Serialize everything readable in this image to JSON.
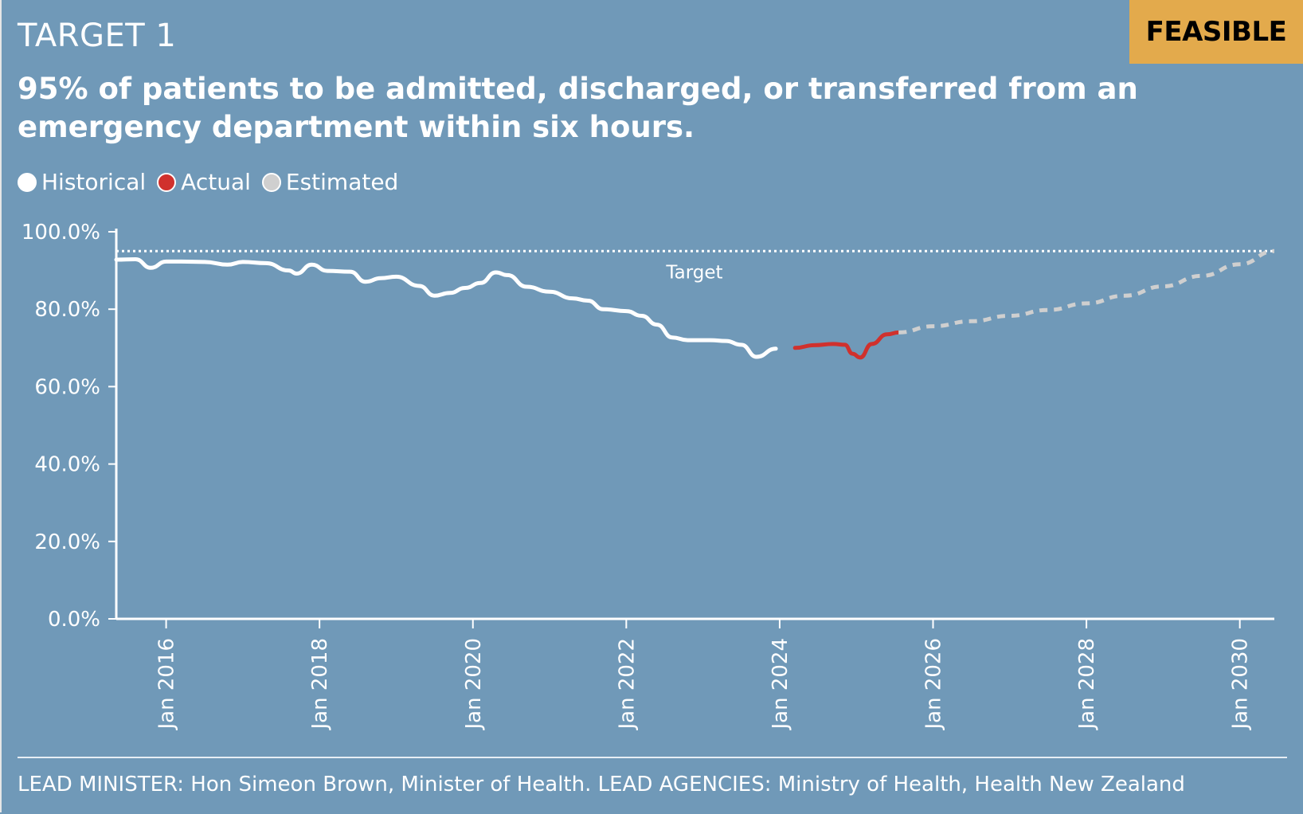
{
  "header": {
    "label": "TARGET 1",
    "badge": "FEASIBLE",
    "title": "95% of patients to be admitted, discharged, or transferred from an emergency department within six hours."
  },
  "legend": [
    {
      "label": "Historical",
      "color": "#ffffff"
    },
    {
      "label": "Actual",
      "color": "#d0312d"
    },
    {
      "label": "Estimated",
      "color": "#cfcfcf"
    }
  ],
  "chart_data": {
    "type": "line",
    "title": "95% of patients to be admitted, discharged, or transferred from an emergency department within six hours.",
    "xlabel": "",
    "ylabel": "",
    "ylim": [
      0,
      100
    ],
    "xlim": [
      2015.35,
      2030.45
    ],
    "y_ticks": [
      {
        "value": 0,
        "label": "0.0%"
      },
      {
        "value": 20,
        "label": "20.0%"
      },
      {
        "value": 40,
        "label": "40.0%"
      },
      {
        "value": 60,
        "label": "60.0%"
      },
      {
        "value": 80,
        "label": "80.0%"
      },
      {
        "value": 100,
        "label": "100.0%"
      }
    ],
    "x_ticks": [
      {
        "value": 2016,
        "label": "Jan 2016"
      },
      {
        "value": 2018,
        "label": "Jan 2018"
      },
      {
        "value": 2020,
        "label": "Jan 2020"
      },
      {
        "value": 2022,
        "label": "Jan 2022"
      },
      {
        "value": 2024,
        "label": "Jan 2024"
      },
      {
        "value": 2026,
        "label": "Jan 2026"
      },
      {
        "value": 2028,
        "label": "Jan 2028"
      },
      {
        "value": 2030,
        "label": "Jan 2030"
      }
    ],
    "target": {
      "value": 95,
      "label": "Target"
    },
    "series": [
      {
        "name": "Historical",
        "color": "#ffffff",
        "style": "solid",
        "x": [
          2015.35,
          2015.6,
          2015.8,
          2016.0,
          2016.2,
          2016.5,
          2016.8,
          2017.0,
          2017.3,
          2017.6,
          2017.7,
          2017.9,
          2018.1,
          2018.4,
          2018.6,
          2018.8,
          2019.0,
          2019.3,
          2019.5,
          2019.7,
          2019.9,
          2020.1,
          2020.3,
          2020.45,
          2020.7,
          2021.0,
          2021.3,
          2021.5,
          2021.7,
          2022.0,
          2022.2,
          2022.4,
          2022.6,
          2022.8,
          2023.1,
          2023.3,
          2023.5,
          2023.7,
          2023.95
        ],
        "y": [
          92.8,
          92.9,
          90.7,
          92.3,
          92.3,
          92.2,
          91.5,
          92.2,
          91.9,
          90.0,
          89.2,
          91.5,
          89.9,
          89.7,
          87.1,
          88.0,
          88.4,
          86.0,
          83.5,
          84.2,
          85.5,
          86.8,
          89.5,
          88.8,
          85.8,
          84.5,
          82.8,
          82.2,
          80.0,
          79.5,
          78.3,
          76.0,
          72.7,
          72.0,
          72.0,
          71.8,
          70.8,
          67.7,
          69.8
        ]
      },
      {
        "name": "Actual",
        "color": "#d0312d",
        "style": "solid",
        "x": [
          2024.2,
          2024.45,
          2024.7,
          2024.85,
          2024.95,
          2025.05,
          2025.2,
          2025.4,
          2025.55
        ],
        "y": [
          70.0,
          70.7,
          71.0,
          70.8,
          68.5,
          67.5,
          71.0,
          73.5,
          74.0
        ]
      },
      {
        "name": "Estimated",
        "color": "#cfcfcf",
        "style": "dashed",
        "x": [
          2025.55,
          2026.0,
          2026.5,
          2027.0,
          2027.5,
          2028.0,
          2028.5,
          2029.0,
          2029.5,
          2030.0,
          2030.45
        ],
        "y": [
          74.0,
          75.6,
          76.9,
          78.3,
          79.8,
          81.5,
          83.5,
          85.9,
          88.6,
          91.6,
          95.0
        ]
      }
    ]
  },
  "footer": {
    "text": "LEAD MINISTER: Hon Simeon Brown, Minister of Health. LEAD AGENCIES: Ministry of Health, Health New Zealand"
  }
}
